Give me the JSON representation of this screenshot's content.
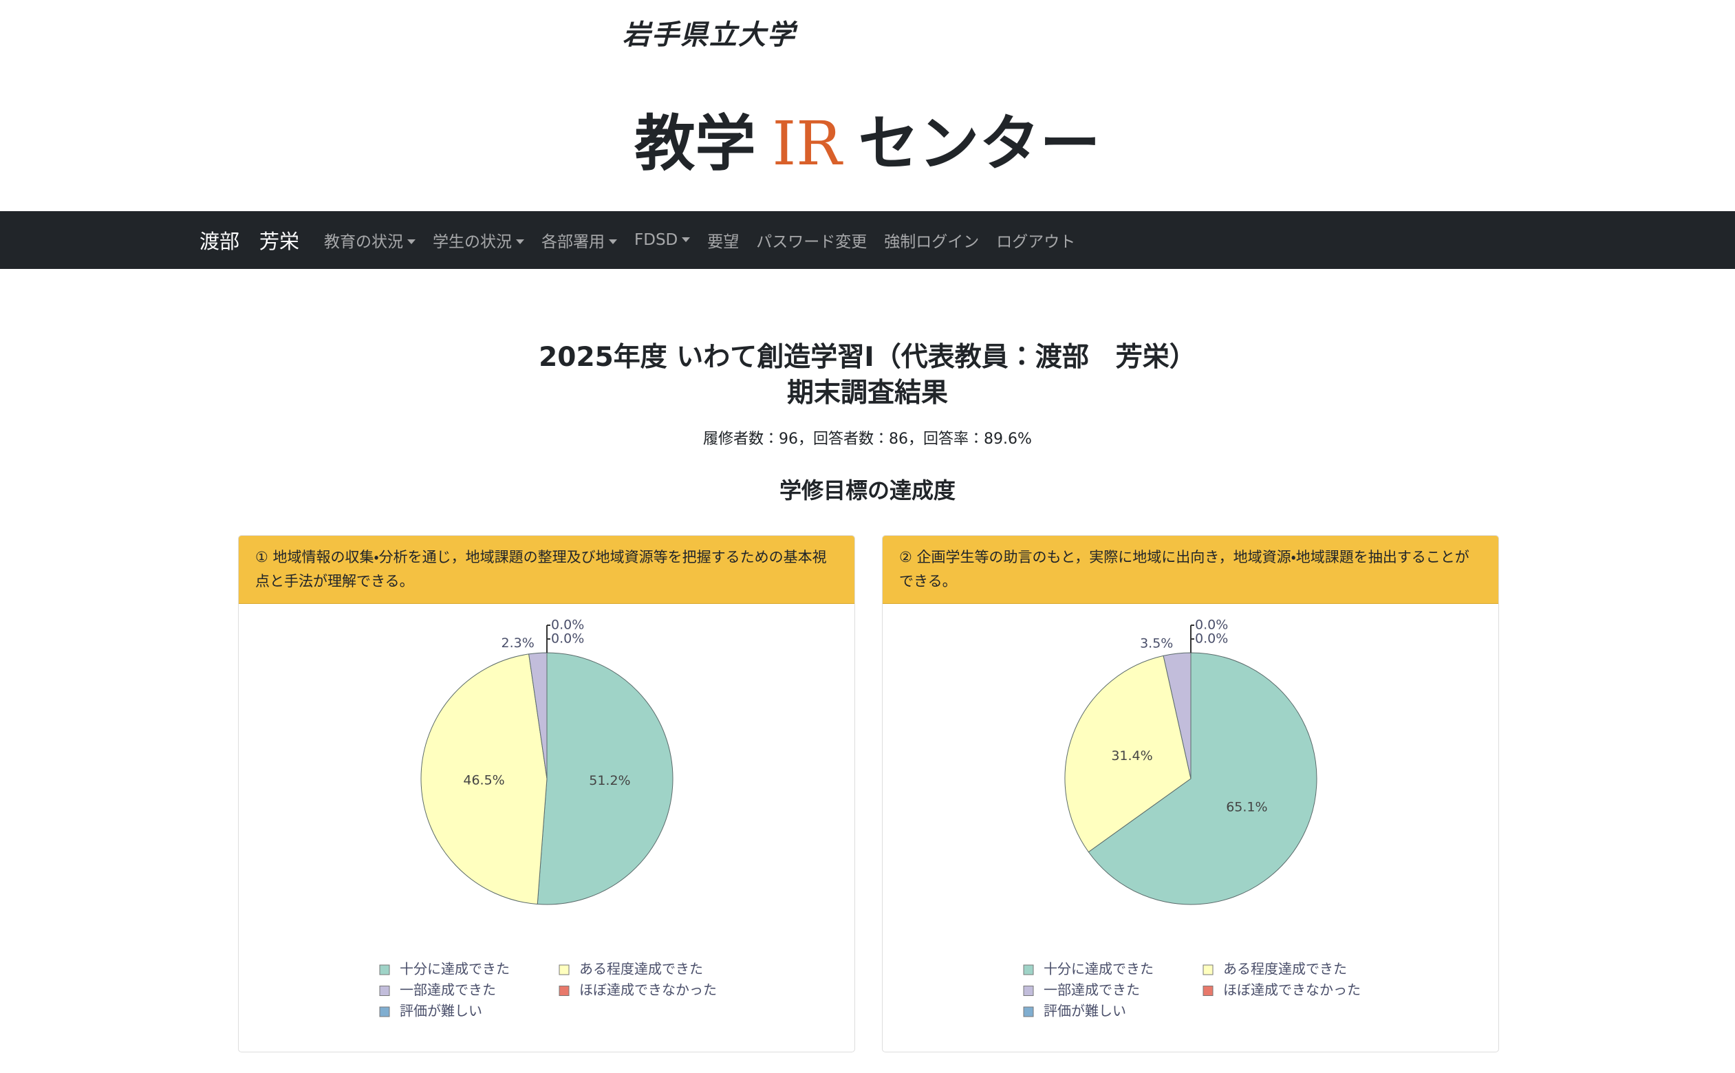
{
  "header": {
    "university": "岩手県立大学",
    "logo": [
      "教学",
      "IR",
      "センター"
    ]
  },
  "nav": {
    "user": "渡部　芳栄",
    "items": [
      {
        "label": "教育の状況",
        "dropdown": true
      },
      {
        "label": "学生の状況",
        "dropdown": true
      },
      {
        "label": "各部署用",
        "dropdown": true
      },
      {
        "label": "FDSD",
        "dropdown": true
      },
      {
        "label": "要望",
        "dropdown": false
      },
      {
        "label": "パスワード変更",
        "dropdown": false
      },
      {
        "label": "強制ログイン",
        "dropdown": false
      },
      {
        "label": "ログアウト",
        "dropdown": false
      }
    ]
  },
  "page": {
    "title": [
      "2025年度 いわて創造学習I（代表教員：渡部　芳栄）",
      "期末調査結果"
    ],
    "stats": "履修者数：96，回答者数：86，回答率：89.6%",
    "section": "学修目標の達成度"
  },
  "chart_data": [
    {
      "type": "pie",
      "title": "① 地域情報の収集・分析を通じ，地域課題の整理及び地域資源等を把握するための基本視点と手法が理解できる。",
      "categories": [
        "十分に達成できた",
        "ある程度達成できた",
        "一部達成できた",
        "ほぼ達成できなかった",
        "評価が難しい"
      ],
      "values": [
        51.2,
        46.5,
        2.3,
        0.0,
        0.0
      ],
      "value_labels": [
        "51.2%",
        "46.5%",
        "2.3%",
        "0.0%",
        "0.0%"
      ],
      "colors": [
        "#9fd3c7",
        "#ffffbf",
        "#c2bddb",
        "#e8796b",
        "#80aed0"
      ]
    },
    {
      "type": "pie",
      "title": "② 企画学生等の助言のもと，実際に地域に出向き，地域資源・地域課題を抽出することができる。",
      "categories": [
        "十分に達成できた",
        "ある程度達成できた",
        "一部達成できた",
        "ほぼ達成できなかった",
        "評価が難しい"
      ],
      "values": [
        65.1,
        31.4,
        3.5,
        0.0,
        0.0
      ],
      "value_labels": [
        "65.1%",
        "31.4%",
        "3.5%",
        "0.0%",
        "0.0%"
      ],
      "colors": [
        "#9fd3c7",
        "#ffffbf",
        "#c2bddb",
        "#e8796b",
        "#80aed0"
      ]
    }
  ]
}
